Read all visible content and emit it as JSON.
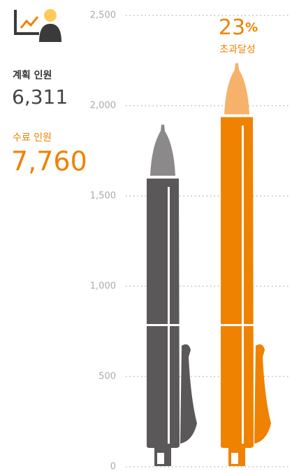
{
  "summary": [
    {
      "label": "계획 인원",
      "value": "6,311"
    },
    {
      "label": "수료 인원",
      "value": "7,760"
    }
  ],
  "chart_data": {
    "type": "pen",
    "values": [
      1895,
      2235
    ],
    "colors": [
      "#5a5859",
      "#ef8200"
    ],
    "tip_colors": [
      "#8b8989",
      "#f6b26b"
    ],
    "annotation": {
      "number": "23",
      "unit": "%",
      "caption": "초과달성",
      "color": "#ef8200"
    },
    "ylim": [
      0,
      2500
    ],
    "yticks": [
      0,
      500,
      {
        "value": 1000,
        "label": "1,000"
      },
      {
        "value": 1500,
        "label": "1,500"
      },
      {
        "value": 2000,
        "label": "2,000"
      },
      {
        "value": 2500,
        "label": "2,500"
      }
    ],
    "grid": true
  }
}
